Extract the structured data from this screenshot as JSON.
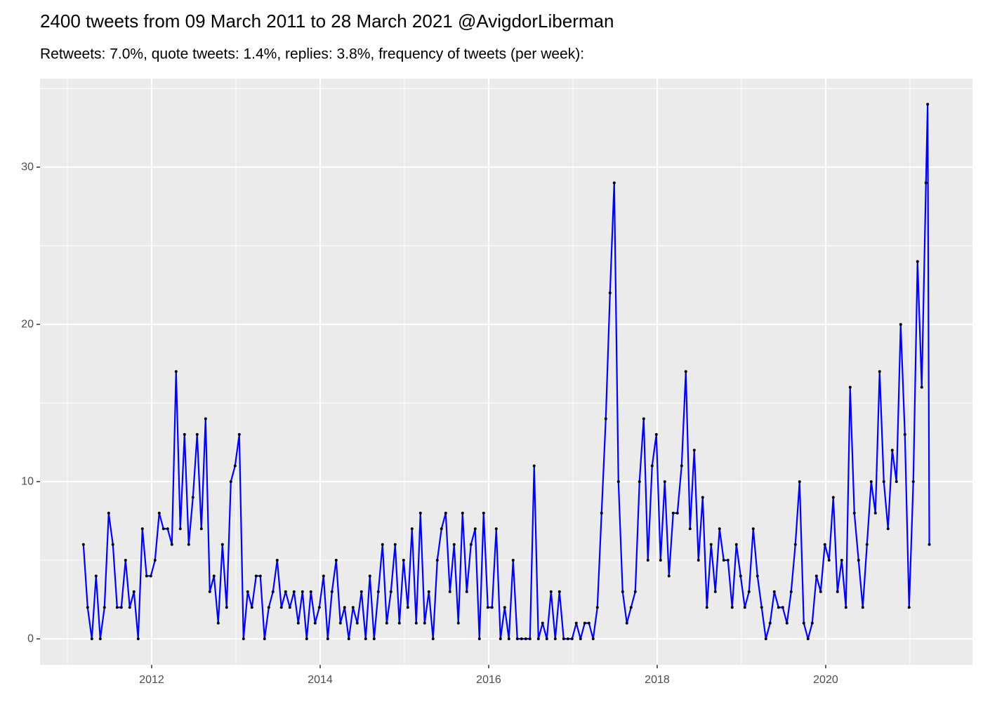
{
  "chart_data": {
    "type": "line",
    "title": "2400 tweets from 09 March 2011 to 28 March 2021 @AvigdorLiberman",
    "subtitle": "Retweets: 7.0%, quote tweets: 1.4%, replies: 3.8%, frequency of tweets (per week):",
    "x": [
      2011.19,
      2011.24,
      2011.29,
      2011.34,
      2011.39,
      2011.44,
      2011.49,
      2011.54,
      2011.59,
      2011.64,
      2011.69,
      2011.74,
      2011.79,
      2011.84,
      2011.89,
      2011.94,
      2011.99,
      2012.04,
      2012.09,
      2012.14,
      2012.19,
      2012.24,
      2012.29,
      2012.34,
      2012.39,
      2012.44,
      2012.49,
      2012.54,
      2012.59,
      2012.64,
      2012.69,
      2012.74,
      2012.79,
      2012.84,
      2012.89,
      2012.94,
      2012.99,
      2013.04,
      2013.09,
      2013.14,
      2013.19,
      2013.24,
      2013.29,
      2013.34,
      2013.39,
      2013.44,
      2013.49,
      2013.54,
      2013.59,
      2013.64,
      2013.69,
      2013.74,
      2013.79,
      2013.84,
      2013.89,
      2013.94,
      2013.99,
      2014.04,
      2014.09,
      2014.14,
      2014.19,
      2014.24,
      2014.29,
      2014.34,
      2014.39,
      2014.44,
      2014.49,
      2014.54,
      2014.59,
      2014.64,
      2014.69,
      2014.74,
      2014.79,
      2014.84,
      2014.89,
      2014.94,
      2014.99,
      2015.04,
      2015.09,
      2015.14,
      2015.19,
      2015.24,
      2015.29,
      2015.34,
      2015.39,
      2015.44,
      2015.49,
      2015.54,
      2015.59,
      2015.64,
      2015.69,
      2015.74,
      2015.79,
      2015.84,
      2015.89,
      2015.94,
      2015.99,
      2016.04,
      2016.09,
      2016.14,
      2016.19,
      2016.24,
      2016.29,
      2016.34,
      2016.39,
      2016.44,
      2016.49,
      2016.54,
      2016.59,
      2016.64,
      2016.69,
      2016.74,
      2016.79,
      2016.84,
      2016.89,
      2016.94,
      2016.99,
      2017.04,
      2017.09,
      2017.14,
      2017.19,
      2017.24,
      2017.29,
      2017.34,
      2017.39,
      2017.44,
      2017.49,
      2017.54,
      2017.59,
      2017.64,
      2017.69,
      2017.74,
      2017.79,
      2017.84,
      2017.89,
      2017.94,
      2017.99,
      2018.04,
      2018.09,
      2018.14,
      2018.19,
      2018.24,
      2018.29,
      2018.34,
      2018.39,
      2018.44,
      2018.49,
      2018.54,
      2018.59,
      2018.64,
      2018.69,
      2018.74,
      2018.79,
      2018.84,
      2018.89,
      2018.94,
      2018.99,
      2019.04,
      2019.09,
      2019.14,
      2019.19,
      2019.24,
      2019.29,
      2019.34,
      2019.39,
      2019.44,
      2019.49,
      2019.54,
      2019.59,
      2019.64,
      2019.69,
      2019.74,
      2019.79,
      2019.84,
      2019.89,
      2019.94,
      2019.99,
      2020.04,
      2020.09,
      2020.14,
      2020.19,
      2020.24,
      2020.29,
      2020.34,
      2020.39,
      2020.44,
      2020.49,
      2020.54,
      2020.59,
      2020.64,
      2020.69,
      2020.74,
      2020.79,
      2020.84,
      2020.89,
      2020.94,
      2020.99,
      2021.04,
      2021.09,
      2021.14,
      2021.19,
      2021.21,
      2021.23
    ],
    "values": [
      6,
      2,
      0,
      4,
      0,
      2,
      8,
      6,
      2,
      2,
      5,
      2,
      3,
      0,
      7,
      4,
      4,
      5,
      8,
      7,
      7,
      6,
      17,
      7,
      13,
      6,
      9,
      13,
      7,
      14,
      3,
      4,
      1,
      6,
      2,
      10,
      11,
      13,
      0,
      3,
      2,
      4,
      4,
      0,
      2,
      3,
      5,
      2,
      3,
      2,
      3,
      1,
      3,
      0,
      3,
      1,
      2,
      4,
      0,
      3,
      5,
      1,
      2,
      0,
      2,
      1,
      3,
      0,
      4,
      0,
      3,
      6,
      1,
      3,
      6,
      1,
      5,
      2,
      7,
      1,
      8,
      1,
      3,
      0,
      5,
      7,
      8,
      3,
      6,
      1,
      8,
      3,
      6,
      7,
      0,
      8,
      2,
      2,
      7,
      0,
      2,
      0,
      5,
      0,
      0,
      0,
      0,
      11,
      0,
      1,
      0,
      3,
      0,
      3,
      0,
      0,
      0,
      1,
      0,
      1,
      1,
      0,
      2,
      8,
      14,
      22,
      29,
      10,
      3,
      1,
      2,
      3,
      10,
      14,
      5,
      11,
      13,
      5,
      10,
      4,
      8,
      8,
      11,
      17,
      7,
      12,
      5,
      9,
      2,
      6,
      3,
      7,
      5,
      5,
      2,
      6,
      4,
      2,
      3,
      7,
      4,
      2,
      0,
      1,
      3,
      2,
      2,
      1,
      3,
      6,
      10,
      1,
      0,
      1,
      4,
      3,
      6,
      5,
      9,
      3,
      5,
      2,
      16,
      8,
      5,
      2,
      6,
      10,
      8,
      17,
      10,
      7,
      12,
      10,
      20,
      13,
      2,
      10,
      24,
      16,
      29,
      34,
      6
    ],
    "color": "#0000ff",
    "marker_color": "#000000",
    "xlim": [
      2010.675,
      2021.742
    ],
    "ylim": [
      -1.65,
      35.63
    ],
    "xticks": [
      2012,
      2014,
      2016,
      2018,
      2020
    ],
    "yticks": [
      0,
      10,
      20,
      30
    ],
    "xminor_ticks": [
      2011,
      2013,
      2015,
      2017,
      2019,
      2021
    ],
    "yminor_ticks": [
      5,
      15,
      25,
      35
    ],
    "grid": true
  }
}
